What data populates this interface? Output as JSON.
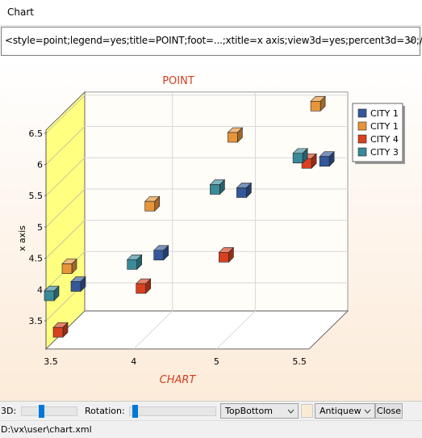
{
  "window": {
    "title": "Chart",
    "command": "<style=point;legend=yes;title=POINT;foot=...;xtitle=x axis;view3d=yes;percent3d=30;/>"
  },
  "chart_data": {
    "type": "point3d",
    "title": "POINT",
    "footer": "CHART",
    "y_axis_label": "x axis",
    "categories": [
      "3.5",
      "4",
      "5",
      "5.5"
    ],
    "series": [
      {
        "name": "CITY 1",
        "color": "#34589a",
        "values": [
          3.7,
          4.2,
          5.2,
          5.7
        ]
      },
      {
        "name": "CITY 1",
        "color": "#e8953a",
        "values": [
          4.1,
          5.1,
          6.2,
          6.7
        ]
      },
      {
        "name": "CITY 4",
        "color": "#d9401f",
        "values": [
          3.2,
          3.9,
          4.4,
          5.9
        ]
      },
      {
        "name": "CITY 3",
        "color": "#3a8a99",
        "values": [
          3.9,
          4.4,
          5.6,
          6.1
        ]
      }
    ],
    "ylim": [
      3.05,
      6.55
    ],
    "yticks": [
      3.5,
      4,
      4.5,
      5,
      5.5,
      6,
      6.5
    ],
    "grid": true,
    "legend": "top-right",
    "view3d": true
  },
  "toolbar": {
    "label_3d": "3D:",
    "label_rotation": "Rotation:",
    "direction": "TopBottom",
    "color": "Antiquew",
    "close": "Close"
  },
  "status": "D:\\vx\\user\\chart.xml"
}
